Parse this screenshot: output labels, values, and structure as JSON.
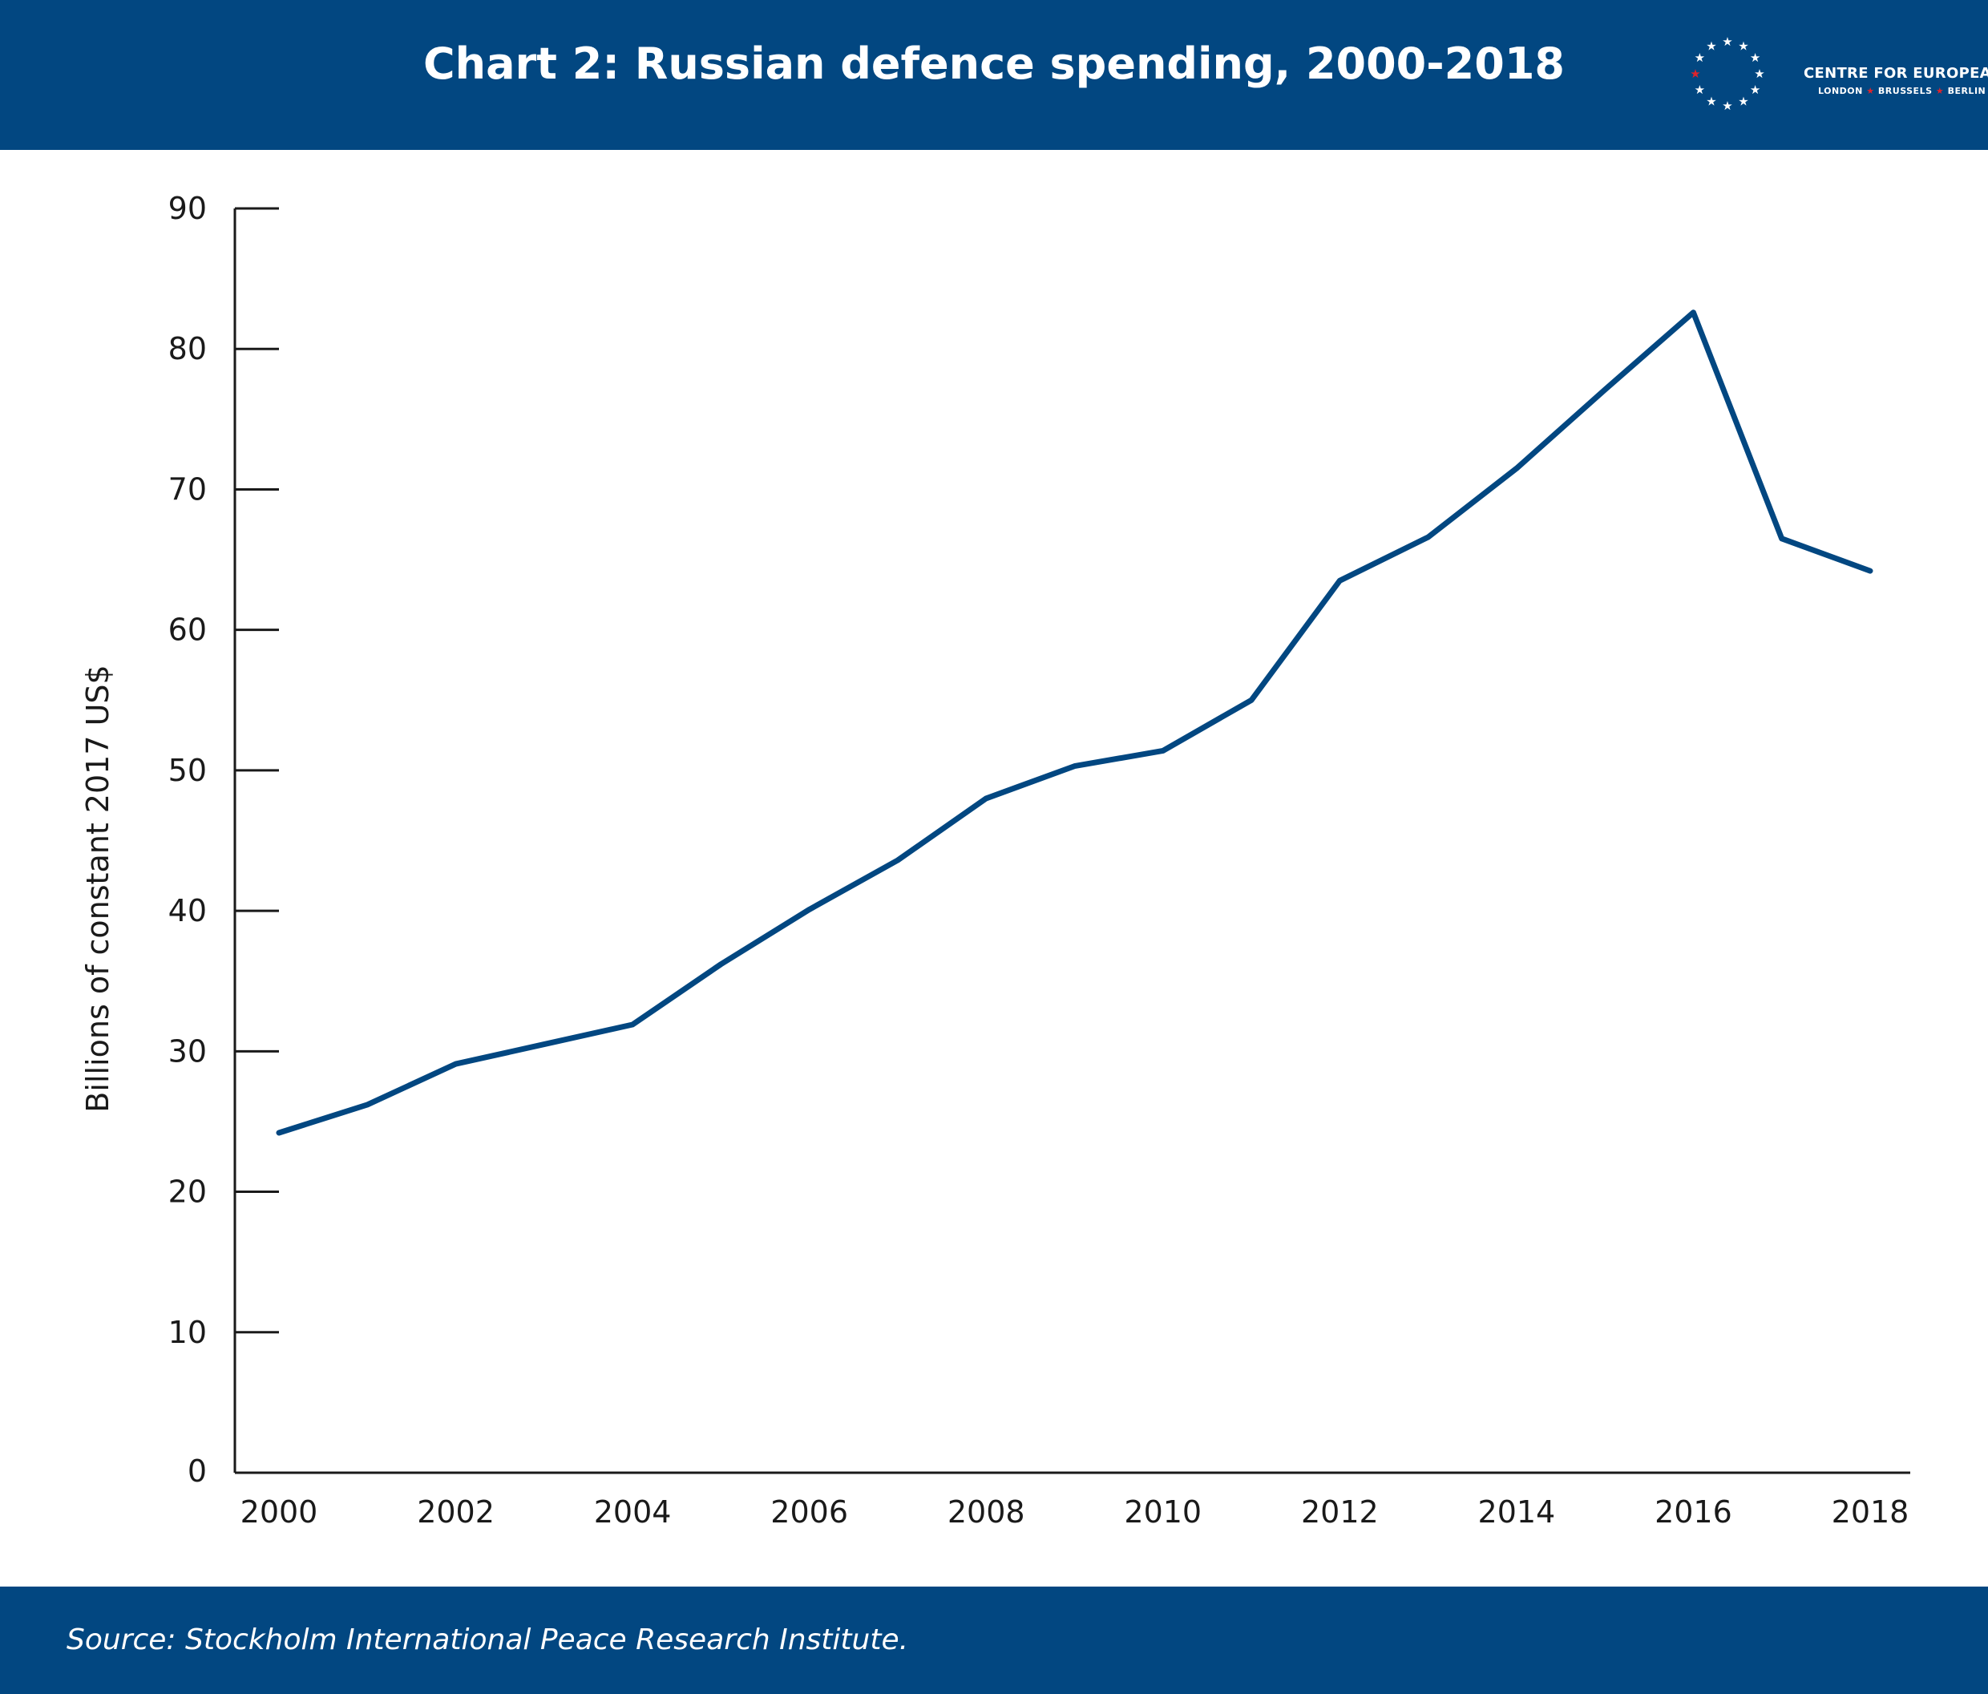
{
  "header": {
    "title": "Chart 2: Russian defence spending, 2000-2018"
  },
  "logo": {
    "name": "CENTRE FOR EUROPEAN REFORM",
    "cities": [
      "LONDON",
      "BRUSSELS",
      "BERLIN"
    ],
    "star_color": "#ffffff",
    "accent_color": "#e0242b"
  },
  "footer": {
    "source": "Source: Stockholm International Peace Research Institute."
  },
  "colors": {
    "band": "#024781",
    "line": "#024781",
    "axis": "#1a1a1a"
  },
  "chart_data": {
    "type": "line",
    "title": "Chart 2: Russian defence spending, 2000-2018",
    "xlabel": "",
    "ylabel": "Billions of constant 2017 US$",
    "ylim": [
      0,
      90
    ],
    "xlim": [
      2000,
      2018
    ],
    "yticks": [
      0,
      10,
      20,
      30,
      40,
      50,
      60,
      70,
      80,
      90
    ],
    "xticks": [
      2000,
      2002,
      2004,
      2006,
      2008,
      2010,
      2012,
      2014,
      2016,
      2018
    ],
    "grid": false,
    "legend": "none",
    "series": [
      {
        "x": [
          2000,
          2001,
          2002,
          2003,
          2004,
          2005,
          2006,
          2007,
          2008,
          2009,
          2010,
          2011,
          2012,
          2013,
          2014,
          2015,
          2016,
          2017,
          2018
        ],
        "values": [
          24.2,
          26.2,
          29.1,
          30.5,
          31.9,
          36.2,
          40.1,
          43.6,
          48.0,
          50.3,
          51.4,
          55.0,
          63.5,
          66.6,
          71.5,
          77.1,
          82.6,
          66.5,
          64.2
        ]
      }
    ]
  }
}
